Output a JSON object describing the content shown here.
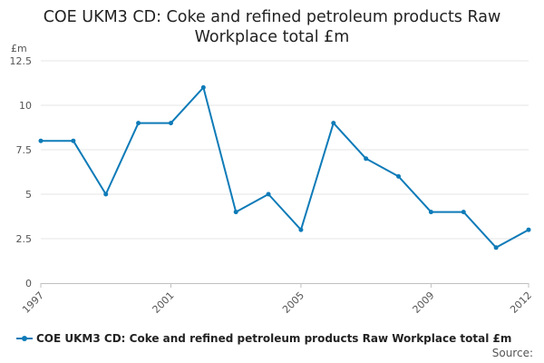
{
  "chart_data": {
    "type": "line",
    "title_lines": [
      "COE UKM3 CD: Coke and refined petroleum products Raw",
      "Workplace total £m"
    ],
    "ylabel": "£m",
    "x": [
      1997,
      1998,
      1999,
      2000,
      2001,
      2002,
      2003,
      2004,
      2005,
      2006,
      2007,
      2008,
      2009,
      2010,
      2011,
      2012
    ],
    "series": [
      {
        "name": "COE UKM3 CD: Coke and refined petroleum products Raw Workplace total £m",
        "values": [
          8,
          8,
          5,
          9,
          9,
          11,
          4,
          5,
          3,
          9,
          7,
          6,
          4,
          4,
          2,
          3
        ]
      }
    ],
    "x_ticks": [
      1997,
      2001,
      2005,
      2009,
      2012
    ],
    "y_ticks": [
      {
        "value": 0,
        "label": "0"
      },
      {
        "value": 2.5,
        "label": "2.5"
      },
      {
        "value": 5,
        "label": "5"
      },
      {
        "value": 7.5,
        "label": "7.5"
      },
      {
        "value": 10,
        "label": "10"
      },
      {
        "value": 12.5,
        "label": "12.5"
      }
    ],
    "ylim": [
      0,
      12.5
    ],
    "xlim": [
      1997,
      2012
    ],
    "grid": true,
    "legend_position": "bottom",
    "line_color": "#0e7bb8",
    "grid_color": "#e6e6e6",
    "source_label": "Source:"
  }
}
